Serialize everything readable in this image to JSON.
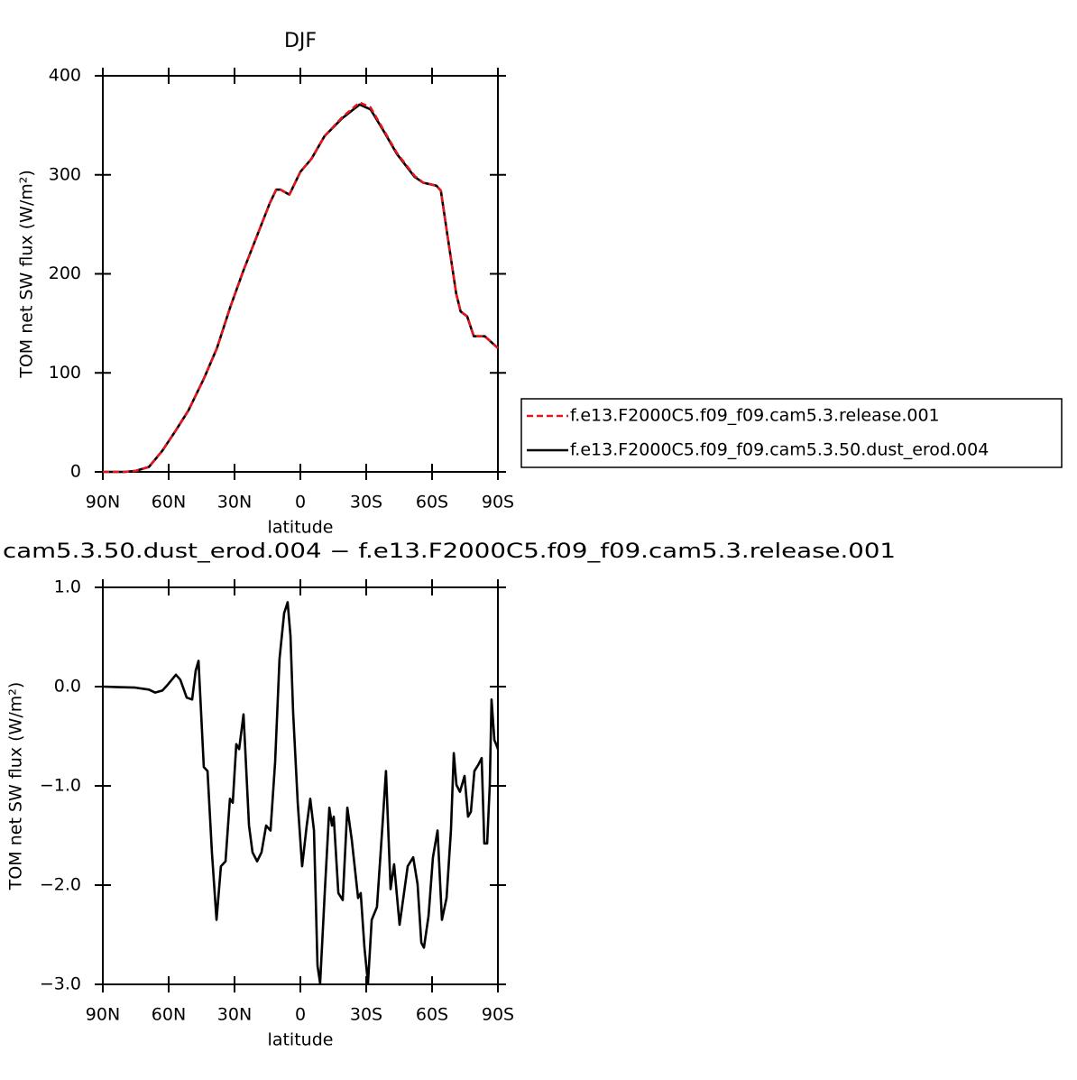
{
  "chart_data": [
    {
      "type": "line",
      "title": "DJF",
      "x_label": "latitude",
      "y_label": "TOM net SW flux (W/m²)",
      "x": [
        90,
        80,
        75,
        69,
        63,
        57,
        51,
        44,
        38,
        32,
        26,
        20,
        14,
        11,
        9,
        5,
        0,
        -5,
        -11,
        -19,
        -27,
        -32,
        -38,
        -44,
        -52,
        -56,
        -62,
        -64,
        -67,
        -71,
        -73,
        -76,
        -79,
        -84,
        -90
      ],
      "series": [
        {
          "name": "f.e13.F2000C5.f09_f09.cam5.3.release.001",
          "color": "#e8141b",
          "linestyle": "dashed",
          "values": [
            0,
            0,
            1,
            5,
            21,
            41,
            62,
            94,
            125,
            166,
            203,
            237,
            271,
            285,
            285,
            280,
            303,
            316,
            339,
            358,
            373,
            368,
            345,
            322,
            299,
            292,
            289,
            284,
            239,
            180,
            162,
            157,
            137,
            137,
            125
          ]
        },
        {
          "name": "f.e13.F2000C5.f09_f09.cam5.3.50.dust_erod.004",
          "color": "#000000",
          "linestyle": "solid",
          "values": [
            0,
            0,
            1,
            5,
            21,
            41,
            62,
            94,
            125,
            166,
            203,
            237,
            271,
            285,
            285,
            280,
            303,
            316,
            339,
            357,
            371,
            366,
            344,
            321,
            298,
            292,
            289,
            284,
            239,
            180,
            162,
            157,
            137,
            137,
            125
          ]
        }
      ],
      "xlim": [
        90,
        -90
      ],
      "xticks": [
        {
          "value": 90,
          "label": "90N"
        },
        {
          "value": 60,
          "label": "60N"
        },
        {
          "value": 30,
          "label": "30N"
        },
        0,
        {
          "value": -30,
          "label": "30S"
        },
        {
          "value": -60,
          "label": "60S"
        },
        {
          "value": -90,
          "label": "90S"
        }
      ],
      "ylim": [
        0,
        400
      ],
      "yticks": [
        0,
        100,
        200,
        300,
        400
      ],
      "legend": "outside right"
    },
    {
      "type": "line",
      "title": "cam5.3.50.dust_erod.004 − f.e13.F2000C5.f09_f09.cam5.3.release.001",
      "x_label": "latitude",
      "y_label": "TOM net SW flux (W/m²)",
      "color": "#000000",
      "x": [
        90,
        75.2,
        69.0,
        66.2,
        62.9,
        60.8,
        56.7,
        54.7,
        51.8,
        49.3,
        47.7,
        46.4,
        44.0,
        42.3,
        40.3,
        38.2,
        36.2,
        34.1,
        32.1,
        30.8,
        29.2,
        27.9,
        25.9,
        23.4,
        21.8,
        19.7,
        17.7,
        15.6,
        13.6,
        11.5,
        9.5,
        7.4,
        5.8,
        4.5,
        3.3,
        1.2,
        -0.8,
        -2.9,
        -4.5,
        -6.2,
        -7.8,
        -9.0,
        -11.1,
        -13.2,
        -14.4,
        -15.2,
        -17.3,
        -19.3,
        -21.4,
        -23.4,
        -26.3,
        -27.5,
        -29.2,
        -30.8,
        -32.5,
        -34.9,
        -37.4,
        -39.0,
        -41.1,
        -42.7,
        -45.2,
        -46.9,
        -48.9,
        -51.4,
        -53.4,
        -55.1,
        -56.3,
        -58.4,
        -60.4,
        -62.5,
        -64.5,
        -66.6,
        -68.6,
        -69.9,
        -71.1,
        -72.7,
        -74.8,
        -76.4,
        -77.7,
        -79.3,
        -81.0,
        -82.6,
        -83.8,
        -85.1,
        -86.3,
        -87.1,
        -88.4,
        -89.2,
        -90
      ],
      "values": [
        0,
        -0.01,
        -0.03,
        -0.06,
        -0.04,
        0.01,
        0.12,
        0.07,
        -0.11,
        -0.13,
        0.16,
        0.26,
        -0.81,
        -0.85,
        -1.67,
        -2.35,
        -1.81,
        -1.76,
        -1.13,
        -1.17,
        -0.58,
        -0.63,
        -0.28,
        -1.4,
        -1.67,
        -1.76,
        -1.67,
        -1.4,
        -1.45,
        -0.76,
        0.28,
        0.74,
        0.85,
        0.51,
        -0.26,
        -1.17,
        -1.81,
        -1.4,
        -1.13,
        -1.45,
        -2.81,
        -2.99,
        -2.08,
        -1.22,
        -1.4,
        -1.31,
        -2.08,
        -2.15,
        -1.22,
        -1.54,
        -2.13,
        -2.08,
        -2.63,
        -2.99,
        -2.35,
        -2.22,
        -1.4,
        -0.85,
        -2.04,
        -1.79,
        -2.4,
        -2.13,
        -1.81,
        -1.72,
        -1.99,
        -2.58,
        -2.63,
        -2.31,
        -1.72,
        -1.45,
        -2.35,
        -2.13,
        -1.45,
        -0.67,
        -0.99,
        -1.06,
        -0.9,
        -1.31,
        -1.26,
        -0.85,
        -0.79,
        -0.72,
        -1.58,
        -1.58,
        -0.99,
        -0.13,
        -0.54,
        -0.58,
        -0.63
      ],
      "xlim": [
        90,
        -90
      ],
      "xticks": [
        {
          "value": 90,
          "label": "90N"
        },
        {
          "value": 60,
          "label": "60N"
        },
        {
          "value": 30,
          "label": "30N"
        },
        0,
        {
          "value": -30,
          "label": "30S"
        },
        {
          "value": -60,
          "label": "60S"
        },
        {
          "value": -90,
          "label": "90S"
        }
      ],
      "ylim": [
        -3,
        1
      ],
      "yticks": [
        {
          "value": 1,
          "label": "1.0"
        },
        {
          "value": 0,
          "label": "0.0"
        },
        {
          "value": -1,
          "label": "−1.0"
        },
        {
          "value": -2,
          "label": "−2.0"
        },
        {
          "value": -3,
          "label": "−3.0"
        }
      ]
    }
  ]
}
